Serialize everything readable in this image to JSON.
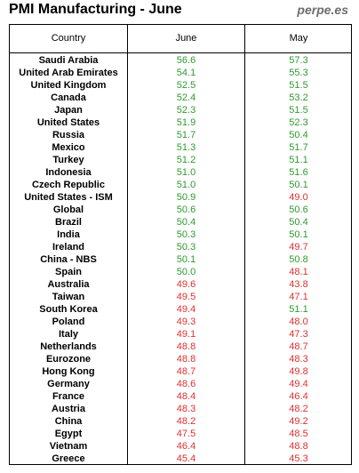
{
  "header": {
    "title": "PMI Manufacturing - June",
    "site": "perpe.es"
  },
  "chart_data": {
    "type": "table",
    "columns": [
      "Country",
      "June",
      "May"
    ],
    "threshold": 50,
    "colors": {
      "above": "#2e9a2e",
      "below": "#e03030"
    },
    "rows": [
      {
        "country": "Saudi Arabia",
        "june": "56.6",
        "may": "57.3"
      },
      {
        "country": "United Arab Emirates",
        "june": "54.1",
        "may": "55.3"
      },
      {
        "country": "United Kingdom",
        "june": "52.5",
        "may": "51.5"
      },
      {
        "country": "Canada",
        "june": "52.4",
        "may": "53.2"
      },
      {
        "country": "Japan",
        "june": "52.3",
        "may": "51.5"
      },
      {
        "country": "United States",
        "june": "51.9",
        "may": "52.3"
      },
      {
        "country": "Russia",
        "june": "51.7",
        "may": "50.4"
      },
      {
        "country": "Mexico",
        "june": "51.3",
        "may": "51.7"
      },
      {
        "country": "Turkey",
        "june": "51.2",
        "may": "51.1"
      },
      {
        "country": "Indonesia",
        "june": "51.0",
        "may": "51.6"
      },
      {
        "country": "Czech Republic",
        "june": "51.0",
        "may": "50.1"
      },
      {
        "country": "United States - ISM",
        "june": "50.9",
        "may": "49.0"
      },
      {
        "country": "Global",
        "june": "50.6",
        "may": "50.6"
      },
      {
        "country": "Brazil",
        "june": "50.4",
        "may": "50.4"
      },
      {
        "country": "India",
        "june": "50.3",
        "may": "50.1"
      },
      {
        "country": "Ireland",
        "june": "50.3",
        "may": "49.7"
      },
      {
        "country": "China - NBS",
        "june": "50.1",
        "may": "50.8"
      },
      {
        "country": "Spain",
        "june": "50.0",
        "may": "48.1"
      },
      {
        "country": "Australia",
        "june": "49.6",
        "may": "43.8"
      },
      {
        "country": "Taiwan",
        "june": "49.5",
        "may": "47.1"
      },
      {
        "country": "South Korea",
        "june": "49.4",
        "may": "51.1"
      },
      {
        "country": "Poland",
        "june": "49.3",
        "may": "48.0"
      },
      {
        "country": "Italy",
        "june": "49.1",
        "may": "47.3"
      },
      {
        "country": "Netherlands",
        "june": "48.8",
        "may": "48.7"
      },
      {
        "country": "Eurozone",
        "june": "48.8",
        "may": "48.3"
      },
      {
        "country": "Hong Kong",
        "june": "48.7",
        "may": "49.8"
      },
      {
        "country": "Germany",
        "june": "48.6",
        "may": "49.4"
      },
      {
        "country": "France",
        "june": "48.4",
        "may": "46.4"
      },
      {
        "country": "Austria",
        "june": "48.3",
        "may": "48.2"
      },
      {
        "country": "China",
        "june": "48.2",
        "may": "49.2"
      },
      {
        "country": "Egypt",
        "june": "47.5",
        "may": "48.5"
      },
      {
        "country": "Vietnam",
        "june": "46.4",
        "may": "48.8"
      },
      {
        "country": "Greece",
        "june": "45.4",
        "may": "45.3"
      }
    ]
  }
}
